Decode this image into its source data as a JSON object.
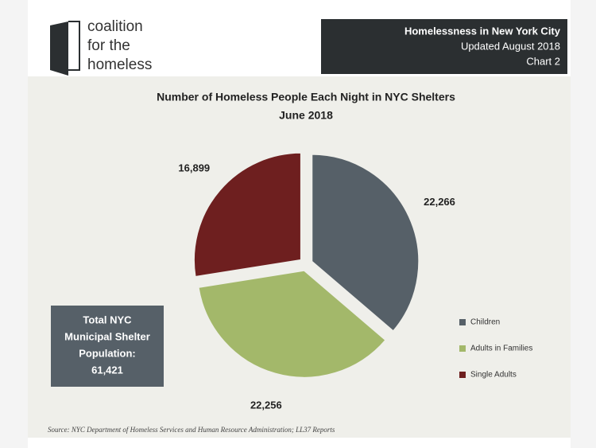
{
  "header": {
    "logo": [
      "coalition",
      "for the",
      "homeless"
    ],
    "info": [
      "Homelessness in New York City",
      "Updated August 2018",
      "Chart 2"
    ]
  },
  "chart_data": {
    "type": "pie",
    "title": "Number of Homeless People Each Night in NYC Shelters",
    "subtitle": "June 2018",
    "categories": [
      "Children",
      "Adults in Families",
      "Single Adults"
    ],
    "values": [
      22266,
      22256,
      16899
    ],
    "value_labels": [
      "22,266",
      "22,256",
      "16,899"
    ],
    "colors": [
      "#566068",
      "#a3b86a",
      "#6e1f1f"
    ],
    "legend": "right"
  },
  "annotation": {
    "lines": [
      "Total NYC",
      "Municipal Shelter",
      "Population:",
      "61,421"
    ]
  },
  "source": "Source:  NYC Department of Homeless Services and Human Resource Administration; LL37 Reports"
}
